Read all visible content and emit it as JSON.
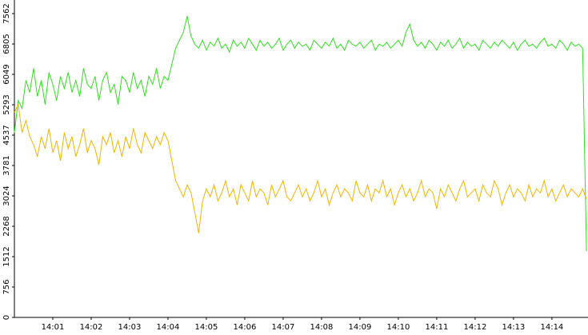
{
  "chart_data": {
    "type": "line",
    "x": [
      0,
      0.1,
      0.2,
      0.3,
      0.4,
      0.5,
      0.6,
      0.7,
      0.8,
      0.9,
      1,
      1.1,
      1.2,
      1.3,
      1.4,
      1.5,
      1.6,
      1.7,
      1.8,
      1.9,
      2,
      2.1,
      2.2,
      2.3,
      2.4,
      2.5,
      2.6,
      2.7,
      2.8,
      2.9,
      3,
      3.1,
      3.2,
      3.3,
      3.4,
      3.5,
      3.6,
      3.7,
      3.8,
      3.9,
      4,
      4.1,
      4.2,
      4.3,
      4.4,
      4.5,
      4.6,
      4.7,
      4.8,
      4.9,
      5,
      5.1,
      5.2,
      5.3,
      5.4,
      5.5,
      5.6,
      5.7,
      5.8,
      5.9,
      6,
      6.1,
      6.2,
      6.3,
      6.4,
      6.5,
      6.6,
      6.7,
      6.8,
      6.9,
      7,
      7.1,
      7.2,
      7.3,
      7.4,
      7.5,
      7.6,
      7.7,
      7.8,
      7.9,
      8,
      8.1,
      8.2,
      8.3,
      8.4,
      8.5,
      8.6,
      8.7,
      8.8,
      8.9,
      9,
      9.1,
      9.2,
      9.3,
      9.4,
      9.5,
      9.6,
      9.7,
      9.8,
      9.9,
      10,
      10.1,
      10.2,
      10.3,
      10.4,
      10.5,
      10.6,
      10.7,
      10.8,
      10.9,
      11,
      11.1,
      11.2,
      11.3,
      11.4,
      11.5,
      11.6,
      11.7,
      11.8,
      11.9,
      12,
      12.1,
      12.2,
      12.3,
      12.4,
      12.5,
      12.6,
      12.7,
      12.8,
      12.9,
      13,
      13.1,
      13.2,
      13.3,
      13.4,
      13.5,
      13.6,
      13.7,
      13.8,
      13.9,
      14,
      14.1,
      14.2,
      14.3,
      14.4,
      14.5,
      14.6,
      14.7,
      14.8,
      14.9
    ],
    "series": [
      {
        "color": "#33dd22",
        "values": [
          4600,
          5400,
          5200,
          5900,
          5600,
          6200,
          5500,
          5900,
          5300,
          6100,
          5800,
          5400,
          6000,
          5700,
          6100,
          5600,
          5900,
          5500,
          6200,
          5800,
          5700,
          6000,
          5400,
          5900,
          6100,
          5600,
          5800,
          5300,
          6000,
          5900,
          5600,
          6100,
          5700,
          5900,
          5500,
          6000,
          5800,
          6200,
          5700,
          6000,
          5900,
          6300,
          6700,
          6900,
          7100,
          7500,
          7000,
          6800,
          6700,
          6900,
          6650,
          6850,
          6750,
          6950,
          6700,
          6800,
          6600,
          6900,
          6750,
          6850,
          6700,
          6950,
          6800,
          6650,
          6900,
          6750,
          6850,
          6700,
          6800,
          6950,
          6650,
          6800,
          6900,
          6700,
          6850,
          6750,
          6800,
          6650,
          6900,
          6800,
          6700,
          6850,
          6750,
          6950,
          6700,
          6800,
          6650,
          6900,
          6800,
          6750,
          6850,
          6700,
          6800,
          6900,
          6650,
          6800,
          6750,
          6850,
          6700,
          6800,
          6900,
          6750,
          7100,
          7300,
          6900,
          6750,
          6850,
          6700,
          6900,
          6800,
          6650,
          6850,
          6750,
          6900,
          6700,
          6800,
          6950,
          6700,
          6850,
          6750,
          6800,
          6650,
          6900,
          6800,
          6700,
          6850,
          6750,
          6900,
          6800,
          6700,
          6850,
          6650,
          6800,
          6900,
          6750,
          6800,
          6700,
          6850,
          6950,
          6750,
          6800,
          6700,
          6900,
          6800,
          6650,
          6850,
          6750,
          6800,
          6700,
          1650
        ]
      },
      {
        "color": "#f0b400",
        "values": [
          5100,
          5300,
          4600,
          4900,
          4500,
          4300,
          4000,
          4500,
          4200,
          4700,
          4100,
          4400,
          3900,
          4600,
          4200,
          4500,
          4000,
          4300,
          4700,
          4100,
          4400,
          4200,
          3800,
          4500,
          4300,
          4600,
          4100,
          4400,
          4000,
          4500,
          4200,
          4700,
          4300,
          4100,
          4600,
          4400,
          4200,
          4500,
          4300,
          4600,
          4400,
          3900,
          3400,
          3200,
          3000,
          3300,
          3100,
          2600,
          2100,
          2900,
          3200,
          3000,
          3300,
          2900,
          3100,
          3400,
          3000,
          3200,
          2800,
          3300,
          3100,
          2900,
          3400,
          3000,
          3200,
          3100,
          2800,
          3300,
          3000,
          3200,
          3400,
          3000,
          2900,
          3100,
          3300,
          3000,
          3200,
          2900,
          3100,
          3400,
          3000,
          3200,
          2800,
          3100,
          3300,
          3000,
          3200,
          3100,
          2900,
          3400,
          3100,
          3000,
          3300,
          2900,
          3200,
          3100,
          3400,
          3000,
          3200,
          2800,
          3100,
          3300,
          3000,
          3200,
          2900,
          3100,
          3400,
          3000,
          3200,
          3100,
          2700,
          3200,
          3000,
          3300,
          3100,
          2900,
          3200,
          3400,
          3000,
          3100,
          3200,
          2900,
          3300,
          3100,
          3000,
          3400,
          3200,
          2800,
          3100,
          3300,
          3000,
          3200,
          3100,
          2900,
          3300,
          3000,
          3200,
          3100,
          3400,
          3000,
          3200,
          2900,
          3100,
          3300,
          3000,
          3200,
          3100,
          3000,
          3200,
          2950
        ]
      }
    ],
    "xlim": [
      0,
      14.94
    ],
    "xticks": [
      {
        "value": 1,
        "label": "14:01"
      },
      {
        "value": 2,
        "label": "14:02"
      },
      {
        "value": 3,
        "label": "14:03"
      },
      {
        "value": 4,
        "label": "14:04"
      },
      {
        "value": 5,
        "label": "14:05"
      },
      {
        "value": 6,
        "label": "14:06"
      },
      {
        "value": 7,
        "label": "14:07"
      },
      {
        "value": 8,
        "label": "14:08"
      },
      {
        "value": 9,
        "label": "14:09"
      },
      {
        "value": 10,
        "label": "14:10"
      },
      {
        "value": 11,
        "label": "14:11"
      },
      {
        "value": 12,
        "label": "14:12"
      },
      {
        "value": 13,
        "label": "14:13"
      },
      {
        "value": 14,
        "label": "14:14"
      }
    ],
    "ylim": [
      0,
      7562
    ],
    "yticks": [
      0,
      756,
      1512,
      2268,
      3024,
      3781,
      4537,
      5293,
      6049,
      6805,
      7562
    ],
    "grid": false
  }
}
